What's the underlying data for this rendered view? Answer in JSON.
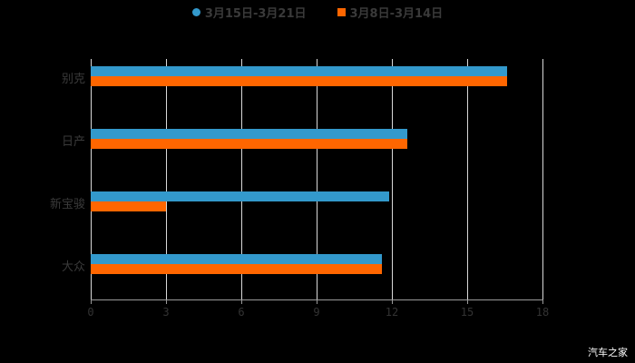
{
  "chart_data": {
    "type": "bar",
    "orientation": "horizontal",
    "title": "",
    "categories": [
      "别克",
      "日产",
      "新宝骏",
      "大众"
    ],
    "series": [
      {
        "name": "3月15日-3月21日",
        "color": "#3399cc",
        "values": [
          16.6,
          12.6,
          11.9,
          11.6
        ]
      },
      {
        "name": "3月8日-3月14日",
        "color": "#ff6600",
        "values": [
          16.6,
          12.6,
          3.0,
          11.6
        ]
      }
    ],
    "xlabel": "",
    "ylabel": "",
    "xlim": [
      0,
      18
    ],
    "xticks": [
      "0",
      "3",
      "6",
      "9",
      "12",
      "15",
      "18"
    ],
    "grid": true,
    "legend_position": "top"
  },
  "legend": {
    "series1": "3月15日-3月21日",
    "series2": "3月8日-3月14日"
  },
  "watermark": "汽车之家"
}
